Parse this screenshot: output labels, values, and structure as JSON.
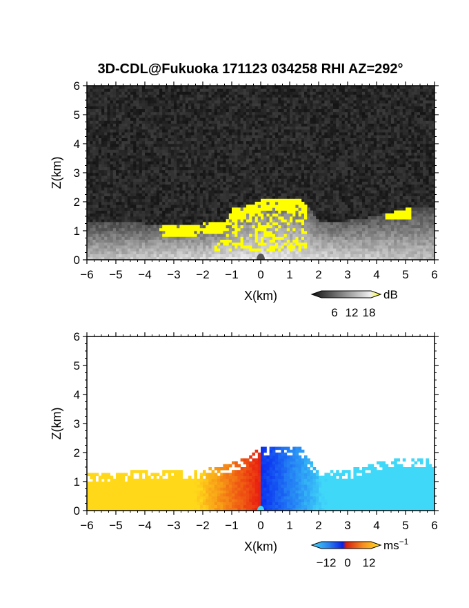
{
  "title": "3D-CDL@Fukuoka 171123 034258 RHI AZ=292°",
  "chart_data": [
    {
      "type": "heatmap",
      "variable": "reflectivity",
      "xlabel": "X(km)",
      "ylabel": "Z(km)",
      "xlim": [
        -6,
        6
      ],
      "ylim": [
        0,
        6
      ],
      "xticks": [
        "−6",
        "−5",
        "−4",
        "−3",
        "−2",
        "−1",
        "0",
        "1",
        "2",
        "3",
        "4",
        "5",
        "6"
      ],
      "yticks": [
        "0",
        "1",
        "2",
        "3",
        "4",
        "5",
        "6"
      ],
      "colorbar": {
        "unit": "dB",
        "ticks": [
          "6",
          "12",
          "18"
        ],
        "range": [
          0,
          21
        ]
      },
      "colors": {
        "background": "#1e1e1e",
        "echo_low": "#6a6a6a",
        "echo_high": "#e8e8e8",
        "saturated": "#ffff00"
      },
      "echo_top_profile": {
        "x": [
          -6,
          -5,
          -4,
          -3.5,
          -3,
          -2,
          -1.2,
          -1,
          -0.5,
          0,
          0.5,
          1,
          1.4,
          2,
          3,
          4,
          5,
          6
        ],
        "z": [
          1.3,
          1.25,
          1.2,
          1.2,
          1.15,
          1.2,
          1.3,
          1.7,
          1.8,
          2.0,
          2.1,
          2.1,
          2.05,
          1.3,
          1.3,
          1.45,
          1.7,
          1.8
        ]
      }
    },
    {
      "type": "heatmap",
      "variable": "doppler_velocity",
      "xlabel": "X(km)",
      "ylabel": "Z(km)",
      "xlim": [
        -6,
        6
      ],
      "ylim": [
        0,
        6
      ],
      "xticks": [
        "−6",
        "−5",
        "−4",
        "−3",
        "−2",
        "−1",
        "0",
        "1",
        "2",
        "3",
        "4",
        "5",
        "6"
      ],
      "yticks": [
        "0",
        "1",
        "2",
        "3",
        "4",
        "5",
        "6"
      ],
      "colorbar": {
        "unit": "ms",
        "unit_exp": "−1",
        "ticks": [
          "−12",
          "0",
          "12"
        ],
        "range": [
          -15,
          15
        ]
      },
      "colors": {
        "neg_far": "#40d8f8",
        "neg_near": "#0a30f0",
        "pos_near": "#e82010",
        "pos_far": "#ffd81a"
      },
      "echo_top_profile": {
        "x": [
          -6,
          -5,
          -4,
          -3,
          -2,
          -1.3,
          -1,
          -0.5,
          0,
          0.4,
          1,
          1.4,
          2,
          3,
          4,
          5,
          5.8
        ],
        "z": [
          1.3,
          1.25,
          1.35,
          1.3,
          1.35,
          1.5,
          1.6,
          1.8,
          2.1,
          2.2,
          2.2,
          2.1,
          1.3,
          1.35,
          1.6,
          1.8,
          1.8
        ]
      }
    }
  ]
}
